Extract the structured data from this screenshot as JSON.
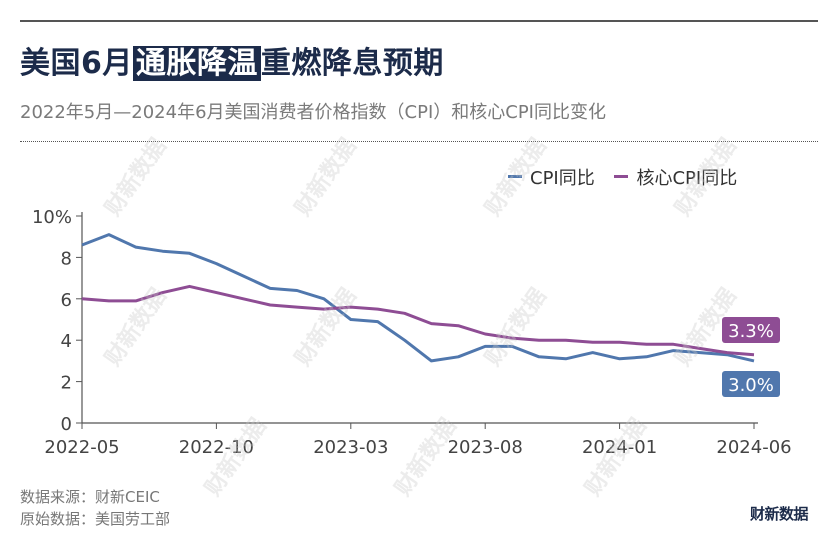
{
  "header": {
    "title_before": "美国6月",
    "title_highlight": "通胀降温",
    "title_after": "重燃降息预期",
    "subtitle": "2022年5月—2024年6月美国消费者价格指数（CPI）和核心CPI同比变化"
  },
  "footer": {
    "source": "数据来源：财新CEIC",
    "origin": "原始数据：美国劳工部",
    "brand": "财新数据",
    "watermark": "财新数据"
  },
  "colors": {
    "cpi": "#5077ad",
    "core": "#8e4d94",
    "title": "#1c2b4a"
  },
  "chart_data": {
    "type": "line",
    "x_labels": [
      "2022-05",
      "2022-06",
      "2022-07",
      "2022-08",
      "2022-09",
      "2022-10",
      "2022-11",
      "2022-12",
      "2023-01",
      "2023-02",
      "2023-03",
      "2023-04",
      "2023-05",
      "2023-06",
      "2023-07",
      "2023-08",
      "2023-09",
      "2023-10",
      "2023-11",
      "2023-12",
      "2024-01",
      "2024-02",
      "2024-03",
      "2024-04",
      "2024-05",
      "2024-06"
    ],
    "tick_labels": [
      "2022-05",
      "2022-10",
      "2023-03",
      "2023-08",
      "2024-01",
      "2024-06"
    ],
    "y_ticks": [
      "10%",
      "8",
      "6",
      "4",
      "2",
      "0"
    ],
    "ylim": [
      0,
      10
    ],
    "grid": false,
    "legend": "top-right",
    "series": [
      {
        "name": "CPI同比",
        "values": [
          8.6,
          9.1,
          8.5,
          8.3,
          8.2,
          7.7,
          7.1,
          6.5,
          6.4,
          6.0,
          5.0,
          4.9,
          4.0,
          3.0,
          3.2,
          3.7,
          3.7,
          3.2,
          3.1,
          3.4,
          3.1,
          3.2,
          3.5,
          3.4,
          3.3,
          3.0
        ],
        "end_label": "3.0%"
      },
      {
        "name": "核心CPI同比",
        "values": [
          6.0,
          5.9,
          5.9,
          6.3,
          6.6,
          6.3,
          6.0,
          5.7,
          5.6,
          5.5,
          5.6,
          5.5,
          5.3,
          4.8,
          4.7,
          4.3,
          4.1,
          4.0,
          4.0,
          3.9,
          3.9,
          3.8,
          3.8,
          3.6,
          3.4,
          3.3
        ],
        "end_label": "3.3%"
      }
    ]
  }
}
